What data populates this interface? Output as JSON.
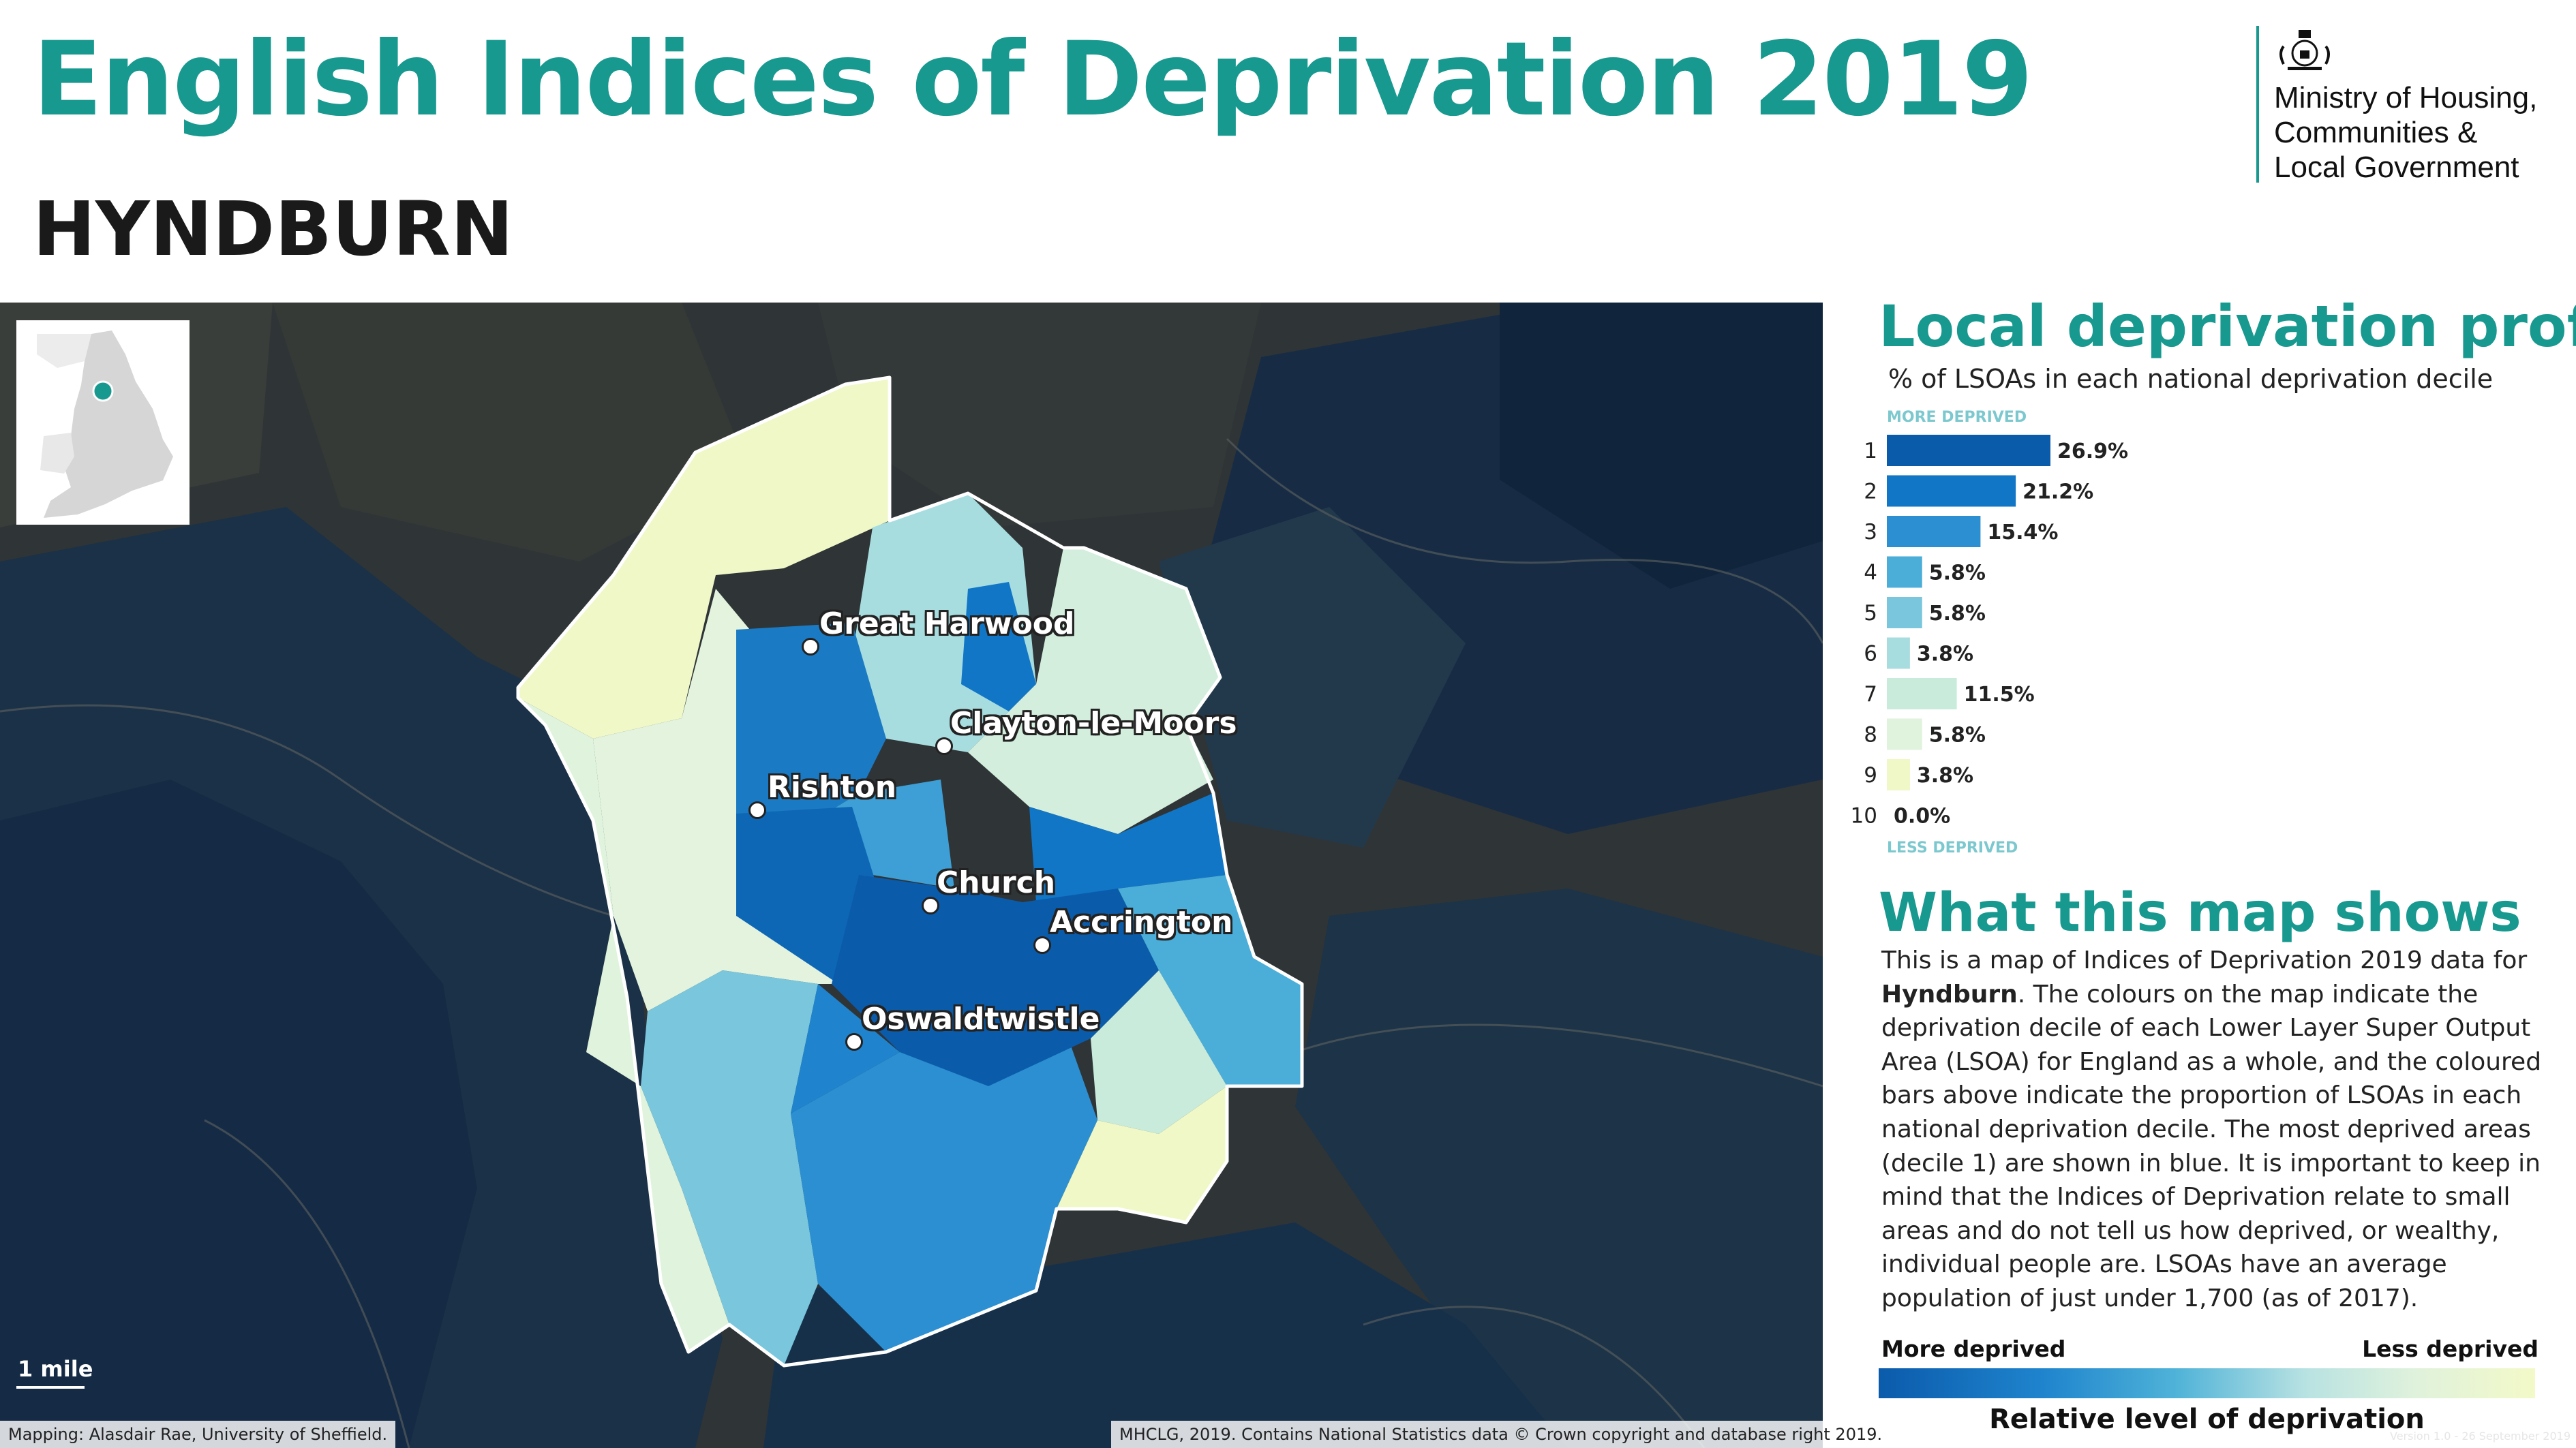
{
  "header": {
    "title": "English Indices of Deprivation 2019",
    "area_name": "HYNDBURN",
    "logo_text": [
      "Ministry of Housing,",
      "Communities &",
      "Local Government"
    ]
  },
  "map": {
    "towns": [
      "Great Harwood",
      "Clayton-le-Moors",
      "Rishton",
      "Church",
      "Accrington",
      "Oswaldtwistle"
    ],
    "scale_label": "1 mile",
    "credit_left": "Mapping: Alasdair Rae, University of Sheffield.",
    "credit_right": "MHCLG, 2019. Contains National Statistics data © Crown copyright and database right 2019."
  },
  "profile": {
    "title": "Local deprivation profile",
    "subtitle": "% of LSOAs in each national deprivation decile",
    "more_label": "MORE DEPRIVED",
    "less_label": "LESS DEPRIVED"
  },
  "chart_data": {
    "type": "bar",
    "orientation": "horizontal",
    "categories": [
      "1",
      "2",
      "3",
      "4",
      "5",
      "6",
      "7",
      "8",
      "9",
      "10"
    ],
    "values": [
      26.9,
      21.2,
      15.4,
      5.8,
      5.8,
      3.8,
      11.5,
      5.8,
      3.8,
      0.0
    ],
    "value_labels": [
      "26.9%",
      "21.2%",
      "15.4%",
      "5.8%",
      "5.8%",
      "3.8%",
      "11.5%",
      "5.8%",
      "3.8%",
      "0.0%"
    ],
    "colors": [
      "#0b5bab",
      "#1176c6",
      "#2b8fd2",
      "#4aaed9",
      "#79c6dd",
      "#a8dde0",
      "#c8ebdc",
      "#e0f3dc",
      "#eff8c6",
      "#f8fbdc"
    ]
  },
  "what_map_shows": {
    "title": "What this map shows",
    "text_before": "This is a map of Indices of Deprivation 2019 data for ",
    "text_bold": "Hyndburn",
    "text_after": ". The colours on the map indicate the deprivation decile of each Lower Layer Super Output Area (LSOA) for England as a whole, and the coloured bars above indicate the proportion of LSOAs in each national deprivation decile. The most deprived areas (decile 1) are shown in blue. It is important to keep in mind that the Indices of Deprivation relate to small areas and do not tell us how deprived, or wealthy, individual people are. LSOAs have an average population of just under 1,700 (as of 2017)."
  },
  "legend": {
    "more": "More deprived",
    "less": "Less deprived",
    "title": "Relative level of deprivation"
  },
  "version": "Version 1.0 - 26 September 2019"
}
